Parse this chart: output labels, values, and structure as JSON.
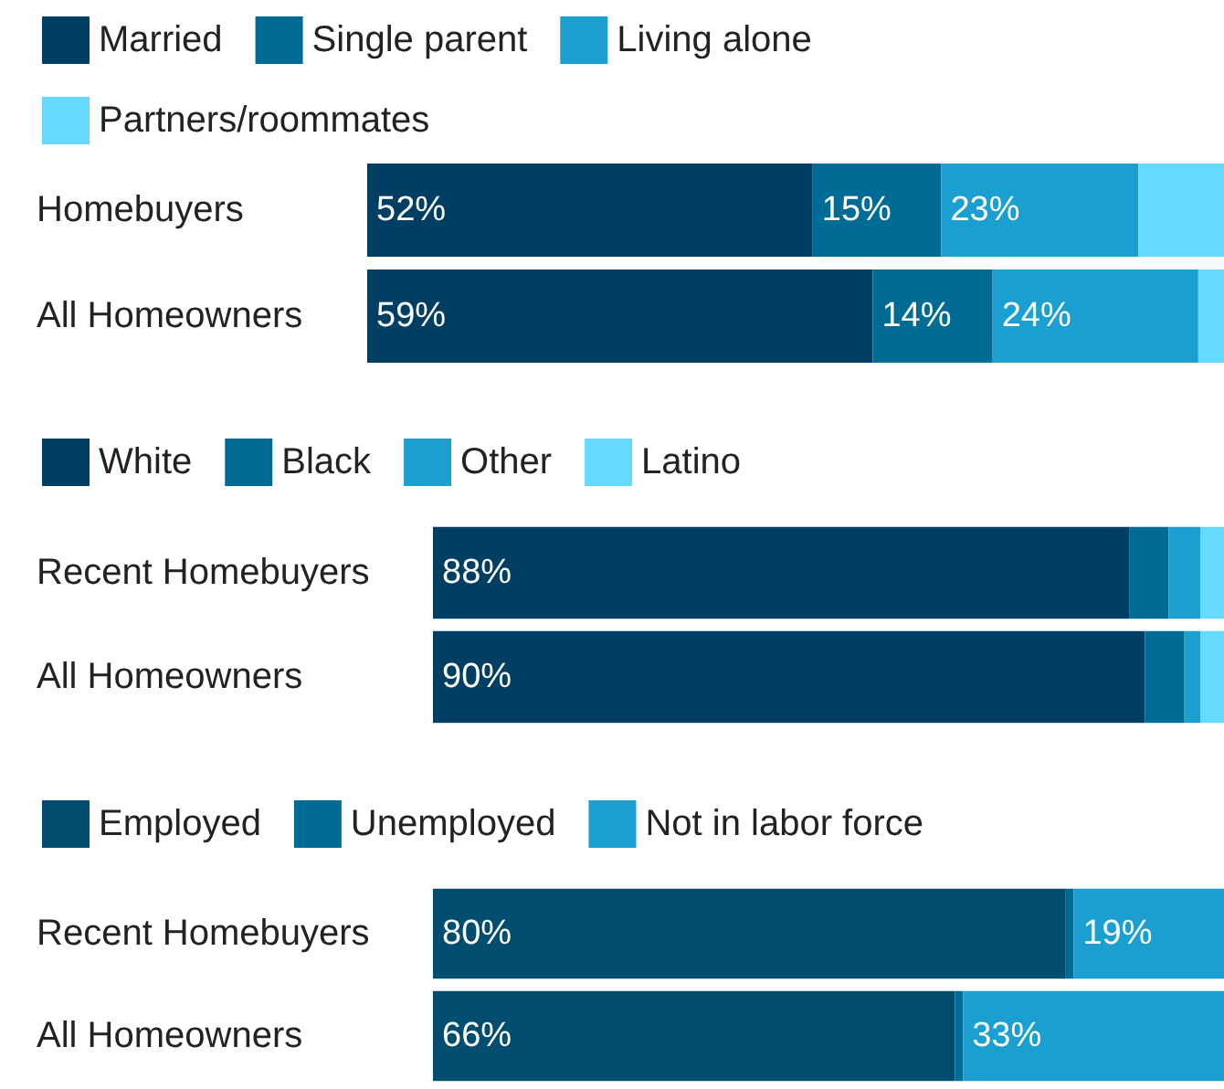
{
  "chart_data": [
    {
      "type": "bar",
      "orientation": "horizontal",
      "stacked": true,
      "legend": "top left",
      "tick_labels": "y",
      "xlim": [
        0,
        100
      ],
      "categories": [
        "Homebuyers",
        "All Homeowners"
      ],
      "series": [
        {
          "name": "Married",
          "color": "#003f63",
          "values": [
            52,
            59
          ],
          "value_labels": [
            "52%",
            "59%"
          ]
        },
        {
          "name": "Single parent",
          "color": "#006c96",
          "values": [
            15,
            14
          ],
          "value_labels": [
            "15%",
            "14%"
          ]
        },
        {
          "name": "Living alone",
          "color": "#1a9fd0",
          "values": [
            23,
            24
          ],
          "value_labels": [
            "23%",
            "24%"
          ]
        },
        {
          "name": "Partners/roommates",
          "color": "#66d9ff",
          "values": [
            10,
            3
          ],
          "value_labels": [
            null,
            null
          ]
        }
      ]
    },
    {
      "type": "bar",
      "orientation": "horizontal",
      "stacked": true,
      "legend": "top left",
      "tick_labels": "y",
      "xlim": [
        0,
        100
      ],
      "categories": [
        "Recent Homebuyers",
        "All Homeowners"
      ],
      "series": [
        {
          "name": "White",
          "color": "#003f63",
          "values": [
            88,
            90
          ],
          "value_labels": [
            "88%",
            "90%"
          ]
        },
        {
          "name": "Black",
          "color": "#006c96",
          "values": [
            5,
            5
          ],
          "value_labels": [
            null,
            null
          ]
        },
        {
          "name": "Other",
          "color": "#1a9fd0",
          "values": [
            4,
            2
          ],
          "value_labels": [
            null,
            null
          ]
        },
        {
          "name": "Latino",
          "color": "#66d9ff",
          "values": [
            3,
            3
          ],
          "value_labels": [
            null,
            null
          ]
        }
      ]
    },
    {
      "type": "bar",
      "orientation": "horizontal",
      "stacked": true,
      "legend": "top left",
      "tick_labels": "y",
      "xlim": [
        0,
        100
      ],
      "categories": [
        "Recent Homebuyers",
        "All Homeowners"
      ],
      "series": [
        {
          "name": "Employed",
          "color": "#004d70",
          "values": [
            80,
            66
          ],
          "value_labels": [
            "80%",
            "66%"
          ]
        },
        {
          "name": "Unemployed",
          "color": "#006c96",
          "values": [
            1,
            1
          ],
          "value_labels": [
            null,
            null
          ]
        },
        {
          "name": "Not in labor force",
          "color": "#1a9fd0",
          "values": [
            19,
            33
          ],
          "value_labels": [
            "19%",
            "33%"
          ]
        }
      ]
    }
  ]
}
